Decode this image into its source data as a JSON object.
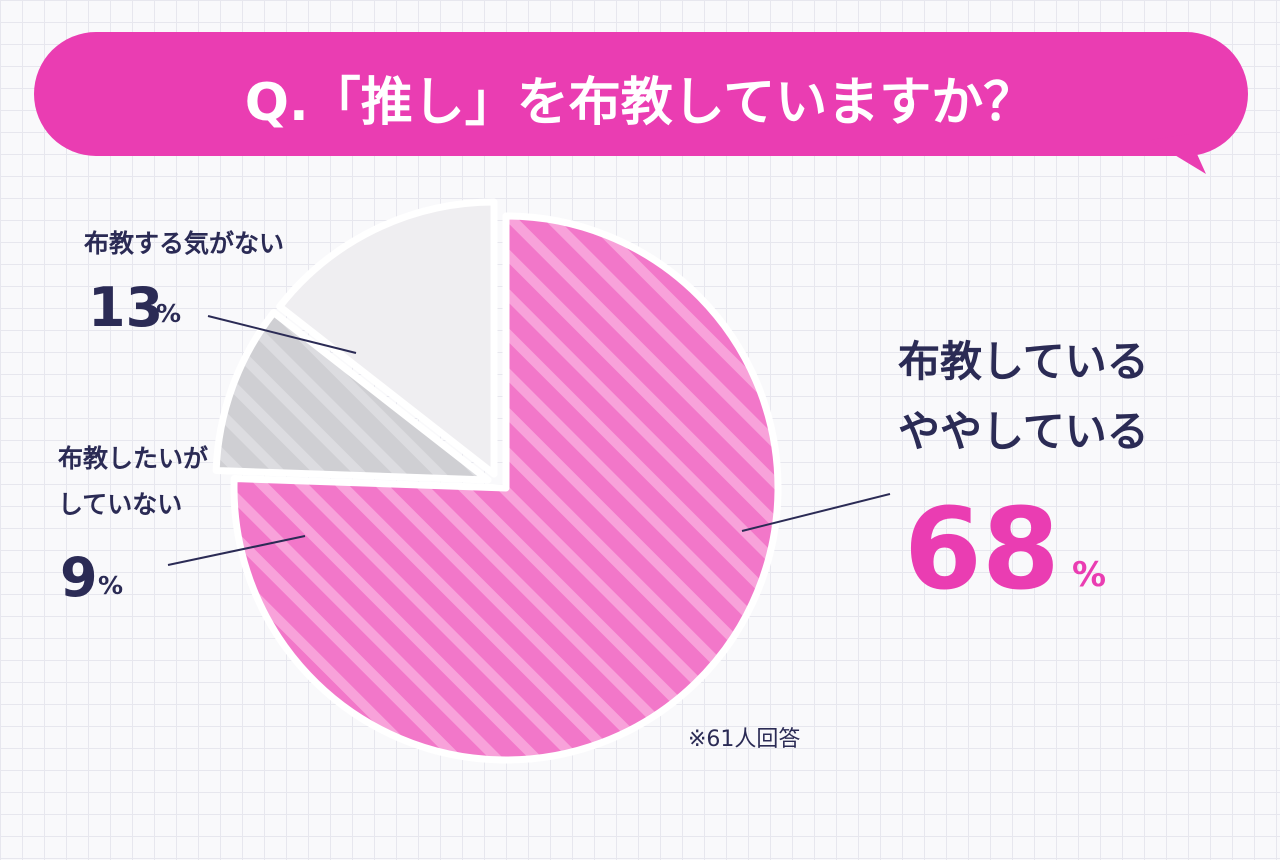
{
  "colors": {
    "accent": "#ea3db2",
    "slice_main": "#f277c9",
    "slice_main_stripe": "#f8a2da",
    "slice_light": "#efeef1",
    "slice_mid": "#cfcfd3",
    "text": "#2b2b55",
    "white": "#ffffff"
  },
  "chart_data": {
    "type": "pie",
    "title": "Q.「推し」を布教していますか？",
    "note": "※61人回答",
    "slices": [
      {
        "label_lines": [
          "布教している",
          "ややしている"
        ],
        "value": 68,
        "value_text": "68",
        "unit": "%"
      },
      {
        "label_lines": [
          "布教したいが",
          "していない"
        ],
        "value": 9,
        "value_text": "9",
        "unit": "%"
      },
      {
        "label_lines": [
          "布教する気がない"
        ],
        "value": 13,
        "value_text": "13",
        "unit": "%"
      }
    ]
  }
}
